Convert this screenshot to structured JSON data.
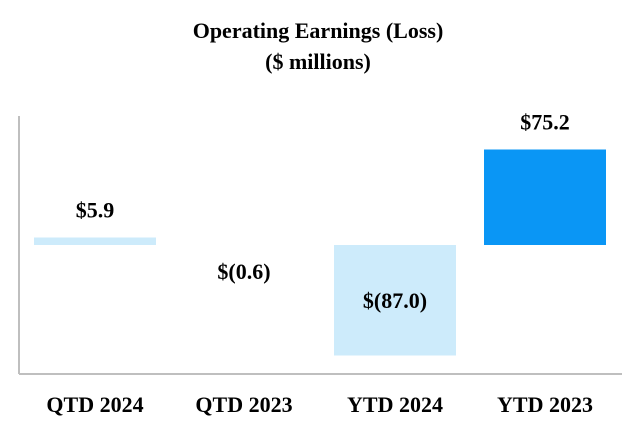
{
  "chart_data": {
    "type": "bar",
    "title": "Operating Earnings (Loss)",
    "subtitle": "($ millions)",
    "xlabel": "",
    "ylabel": "",
    "categories": [
      "QTD 2024",
      "QTD 2023",
      "YTD 2024",
      "YTD 2023"
    ],
    "values": [
      5.9,
      -0.6,
      -87.0,
      75.2
    ],
    "value_labels": [
      "$5.9",
      "$(0.6)",
      "$(87.0)",
      "$75.2"
    ],
    "colors": [
      "#cdebfb",
      "#cdebfb",
      "#cdebfb",
      "#0a96f5"
    ],
    "ylim": [
      -100,
      100
    ],
    "grid": false,
    "legend": "none"
  }
}
